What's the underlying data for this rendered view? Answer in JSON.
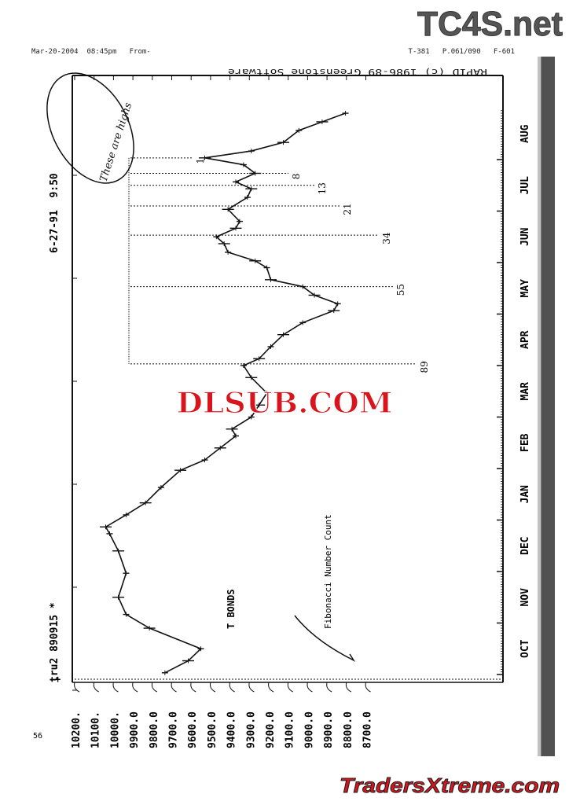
{
  "fax_header": {
    "left": "Mar-20-2004  08:45pm   From-",
    "right": "T-381   P.061/090   F-601"
  },
  "software_credit": "RAPID (c) 1986-89 Greenstone Software",
  "timestamp": "6-27-91  9:50",
  "symbol": "tru2 890915 *",
  "page_number": "56",
  "marker_plus": "+",
  "handwritten_note": "These are highs",
  "watermarks": {
    "top": "TC4S.net",
    "center": "DLSUB.COM",
    "bottom": "TradersXtreme.com"
  },
  "colors": {
    "ink": "#111111",
    "watermark_red": "#d8141c",
    "watermark_grey": "#555555"
  },
  "chart_data": {
    "type": "line",
    "title": "T BONDS",
    "orientation": "rotated 90 degrees counter-clockwise (time runs bottom to top, price increases to the left)",
    "annotation_label": "Fibonacci Number Count",
    "xlabel": "",
    "ylabel": "",
    "x_tick_labels": [
      "OCT",
      "NOV",
      "DEC",
      "JAN",
      "FEB",
      "MAR",
      "APR",
      "MAY",
      "JUN",
      "JUL",
      "AUG"
    ],
    "y_tick_labels": [
      "10200.",
      "10100.",
      "10000.",
      "9900.0",
      "9800.0",
      "9700.0",
      "9600.0",
      "9500.0",
      "9400.0",
      "9300.0",
      "9200.0",
      "9100.0",
      "9000.0",
      "8900.0",
      "8800.0",
      "8700.0"
    ],
    "ylim": [
      8700,
      10200
    ],
    "grid": false,
    "series": [
      {
        "x": [
          "OCT 02",
          "OCT 09",
          "OCT 16",
          "OCT 28",
          "NOV 06",
          "NOV 16",
          "NOV 30",
          "DEC 13",
          "DEC 23",
          "DEC 27",
          "JAN 04",
          "JAN 11",
          "JAN 20",
          "JAN 30",
          "FEB 06",
          "FEB 13",
          "FEB 20",
          "FEB 24",
          "MAR 01",
          "MAR 08",
          "MAR 15",
          "MAR 24",
          "APR 01",
          "APR 05",
          "APR 12",
          "APR 19",
          "APR 26",
          "MAY 03",
          "MAY 07",
          "MAY 12",
          "MAY 17",
          "MAY 21",
          "MAY 28",
          "JUN 02",
          "JUN 07",
          "JUN 12",
          "JUN 16",
          "JUN 21",
          "JUN 25",
          "JUL 02",
          "JUL 09",
          "JUL 14",
          "JUL 18",
          "JUL 23",
          "JUL 28",
          "AUG 02",
          "AUG 06",
          "AUG 11",
          "AUG 18",
          "AUG 23",
          "AUG 28"
        ],
        "values": [
          9735,
          9615,
          9550,
          9815,
          9935,
          9975,
          9935,
          9975,
          10020,
          10040,
          9935,
          9835,
          9755,
          9655,
          9530,
          9450,
          9370,
          9390,
          9290,
          9250,
          9210,
          9290,
          9330,
          9250,
          9190,
          9125,
          9025,
          8865,
          8845,
          8965,
          9025,
          9190,
          9210,
          9270,
          9410,
          9430,
          9470,
          9370,
          9350,
          9410,
          9310,
          9290,
          9370,
          9270,
          9330,
          9530,
          9290,
          9125,
          9045,
          8925,
          8805
        ]
      }
    ],
    "fibonacci_markers": [
      {
        "label": "1",
        "x": "AUG 02"
      },
      {
        "label": "8",
        "x": "JUL 23"
      },
      {
        "label": "13",
        "x": "JUL 16"
      },
      {
        "label": "21",
        "x": "JUL 04"
      },
      {
        "label": "34",
        "x": "JUN 17"
      },
      {
        "label": "55",
        "x": "MAY 17"
      },
      {
        "label": "89",
        "x": "APR 02"
      }
    ]
  }
}
